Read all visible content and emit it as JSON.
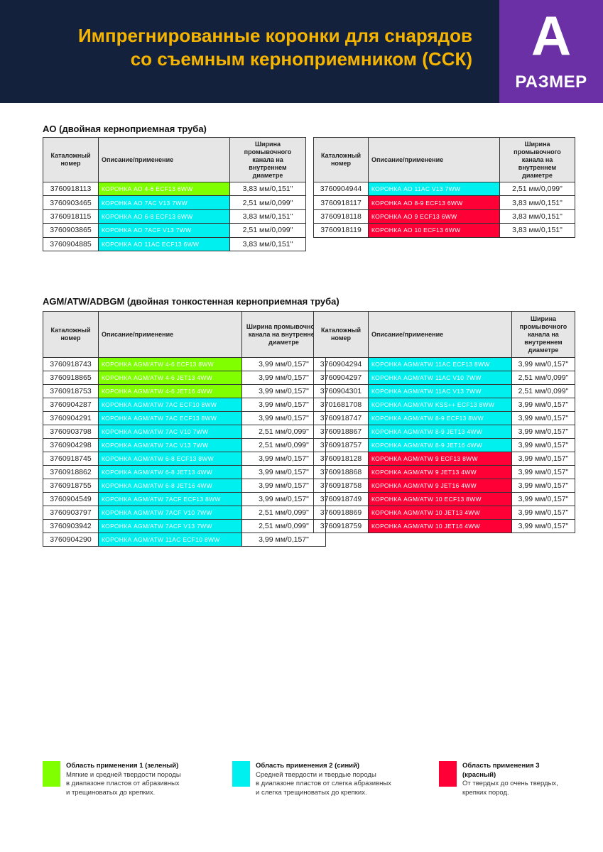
{
  "header": {
    "title_lines": [
      "Импрегнированные коронки для снарядов",
      "со съемным керноприемником (ССК)"
    ],
    "badge_letter": "A",
    "badge_label": "РАЗМЕР"
  },
  "sections": [
    {
      "title": "AO (двойная керноприемная труба)",
      "tables": [
        {
          "headers": [
            "Каталожный номер",
            "Описание/применение",
            "Ширина промывочного канала на внутреннем диаметре"
          ],
          "rows": [
            {
              "number": "3760918113",
              "description": "КОРОНКА АО 4-6 ECF13 6WW",
              "width": "3,83 мм/0,151\"",
              "color": "#7fff00"
            },
            {
              "number": "3760903465",
              "description": "КОРОНКА АО 7AC V13 7WW",
              "width": "2,51 мм/0,099\"",
              "color": "#00f0f0"
            },
            {
              "number": "3760918115",
              "description": "КОРОНКА АО 6-8 ECF13 6WW",
              "width": "3,83 мм/0,151\"",
              "color": "#00f0f0"
            },
            {
              "number": "3760903865",
              "description": "КОРОНКА АО 7ACF V13 7WW",
              "width": "2,51 мм/0,099\"",
              "color": "#00f0f0"
            },
            {
              "number": "3760904885",
              "description": "КОРОНКА АО 11AC ECF13 6WW",
              "width": "3,83 мм/0,151\"",
              "color": "#00f0f0"
            }
          ]
        },
        {
          "headers": [
            "Каталожный номер",
            "Описание/применение",
            "Ширина промывочного канала на внутреннем диаметре"
          ],
          "rows": [
            {
              "number": "3760904944",
              "description": "КОРОНКА АО 11AC V13 7WW",
              "width": "2,51 мм/0,099\"",
              "color": "#00f0f0"
            },
            {
              "number": "3760918117",
              "description": "КОРОНКА АО 8-9 ECF13 6WW",
              "width": "3,83 мм/0,151\"",
              "color": "#ff0036"
            },
            {
              "number": "3760918118",
              "description": "КОРОНКА АО 9 ECF13 6WW",
              "width": "3,83 мм/0,151\"",
              "color": "#ff0036"
            },
            {
              "number": "3760918119",
              "description": "КОРОНКА АО 10 ECF13 6WW",
              "width": "3,83 мм/0,151\"",
              "color": "#ff0036"
            }
          ]
        }
      ]
    },
    {
      "title": "AGM/ATW/ADBGM (двойная тонкостенная керноприемная труба)",
      "tables": [
        {
          "headers": [
            "Каталожный номер",
            "Описание/применение",
            "Ширина промывочного канала на внутреннем диаметре"
          ],
          "rows": [
            {
              "number": "3760918743",
              "description": "КОРОНКА AGM/ATW 4-6 ECF13 8WW",
              "width": "3,99 мм/0,157\"",
              "color": "#7fff00"
            },
            {
              "number": "3760918865",
              "description": "КОРОНКА AGM/ATW 4-6 JET13 4WW",
              "width": "3,99 мм/0,157\"",
              "color": "#7fff00"
            },
            {
              "number": "3760918753",
              "description": "КОРОНКА AGM/ATW 4-6 JET16 4WW",
              "width": "3,99 мм/0,157\"",
              "color": "#7fff00"
            },
            {
              "number": "3760904287",
              "description": "КОРОНКА AGM/ATW 7AC ECF10 8WW",
              "width": "3,99 мм/0,157\"",
              "color": "#00f0f0"
            },
            {
              "number": "3760904291",
              "description": "КОРОНКА AGM/ATW 7AC ECF13 8WW",
              "width": "3,99 мм/0,157\"",
              "color": "#00f0f0"
            },
            {
              "number": "3760903798",
              "description": "КОРОНКА AGM/ATW 7AC V10 7WW",
              "width": "2,51 мм/0,099\"",
              "color": "#00f0f0"
            },
            {
              "number": "3760904298",
              "description": "КОРОНКА AGM/ATW 7AC V13 7WW",
              "width": "2,51 мм/0,099\"",
              "color": "#00f0f0"
            },
            {
              "number": "3760918745",
              "description": "КОРОНКА AGM/ATW 6-8 ECF13 8WW",
              "width": "3,99 мм/0,157\"",
              "color": "#00f0f0"
            },
            {
              "number": "3760918862",
              "description": "КОРОНКА AGM/ATW 6-8 JET13 4WW",
              "width": "3,99 мм/0,157\"",
              "color": "#00f0f0"
            },
            {
              "number": "3760918755",
              "description": "КОРОНКА AGM/ATW 6-8 JET16 4WW",
              "width": "3,99 мм/0,157\"",
              "color": "#00f0f0"
            },
            {
              "number": "3760904549",
              "description": "КОРОНКА AGM/ATW 7ACF ECF13 8WW",
              "width": "3,99 мм/0,157\"",
              "color": "#00f0f0"
            },
            {
              "number": "3760903797",
              "description": "КОРОНКА AGM/ATW 7ACF V10 7WW",
              "width": "2,51 мм/0,099\"",
              "color": "#00f0f0"
            },
            {
              "number": "3760903942",
              "description": "КОРОНКА AGM/ATW 7ACF V13 7WW",
              "width": "2,51 мм/0,099\"",
              "color": "#00f0f0"
            },
            {
              "number": "3760904290",
              "description": "КОРОНКА AGM/ATW 11AC ECF10 8WW",
              "width": "3,99 мм/0,157\"",
              "color": "#00f0f0"
            }
          ]
        },
        {
          "headers": [
            "Каталожный номер",
            "Описание/применение",
            "Ширина промывочного канала на внутреннем диаметре"
          ],
          "rows": [
            {
              "number": "3760904294",
              "description": "КОРОНКА AGM/ATW 11AC ECF13 8WW",
              "width": "3,99 мм/0,157\"",
              "color": "#00f0f0"
            },
            {
              "number": "3760904297",
              "description": "КОРОНКА AGM/ATW 11AC V10 7WW",
              "width": "2,51 мм/0,099\"",
              "color": "#00f0f0"
            },
            {
              "number": "3760904301",
              "description": "КОРОНКА AGM/ATW 11AC V13 7WW",
              "width": "2,51 мм/0,099\"",
              "color": "#00f0f0"
            },
            {
              "number": "3701681708",
              "description": "КОРОНКА AGM/ATW KSS++ ECF13 8WW",
              "width": "3,99 мм/0,157\"",
              "color": "#00f0f0"
            },
            {
              "number": "3760918747",
              "description": "КОРОНКА AGM/ATW 8-9 ECF13 8WW",
              "width": "3,99 мм/0,157\"",
              "color": "#00f0f0"
            },
            {
              "number": "3760918867",
              "description": "КОРОНКА AGM/ATW 8-9 JET13 4WW",
              "width": "3,99 мм/0,157\"",
              "color": "#00f0f0"
            },
            {
              "number": "3760918757",
              "description": "КОРОНКА AGM/ATW 8-9 JET16 4WW",
              "width": "3,99 мм/0,157\"",
              "color": "#00f0f0"
            },
            {
              "number": "3760918128",
              "description": "КОРОНКА AGM/ATW 9 ECF13 8WW",
              "width": "3,99 мм/0,157\"",
              "color": "#ff0036"
            },
            {
              "number": "3760918868",
              "description": "КОРОНКА AGM/ATW 9 JET13 4WW",
              "width": "3,99 мм/0,157\"",
              "color": "#ff0036"
            },
            {
              "number": "3760918758",
              "description": "КОРОНКА AGM/ATW 9 JET16 4WW",
              "width": "3,99 мм/0,157\"",
              "color": "#ff0036"
            },
            {
              "number": "3760918749",
              "description": "КОРОНКА AGM/ATW 10 ECF13 8WW",
              "width": "3,99 мм/0,157\"",
              "color": "#ff0036"
            },
            {
              "number": "3760918869",
              "description": "КОРОНКА AGM/ATW 10 JET13 4WW",
              "width": "3,99 мм/0,157\"",
              "color": "#ff0036"
            },
            {
              "number": "3760918759",
              "description": "КОРОНКА AGM/ATW 10 JET16 4WW",
              "width": "3,99 мм/0,157\"",
              "color": "#ff0036"
            }
          ]
        }
      ]
    }
  ],
  "legend": [
    {
      "title": "Область применения 1 (зеленый)",
      "lines": [
        "Мягкие и средней твердости породы",
        "в диапазоне пластов от абразивных",
        "и трещиноватых до крепких."
      ],
      "color": "#7fff00"
    },
    {
      "title": "Область применения 2 (синий)",
      "lines": [
        "Средней твердости и твердые породы",
        "в диапазоне пластов от слегка абразивных",
        "и слегка трещиноватых до крепких."
      ],
      "color": "#00f0f0"
    },
    {
      "title": "Область применения 3 (красный)",
      "lines": [
        "От твердых до очень твердых,",
        "крепких пород."
      ],
      "color": "#ff0036"
    }
  ]
}
